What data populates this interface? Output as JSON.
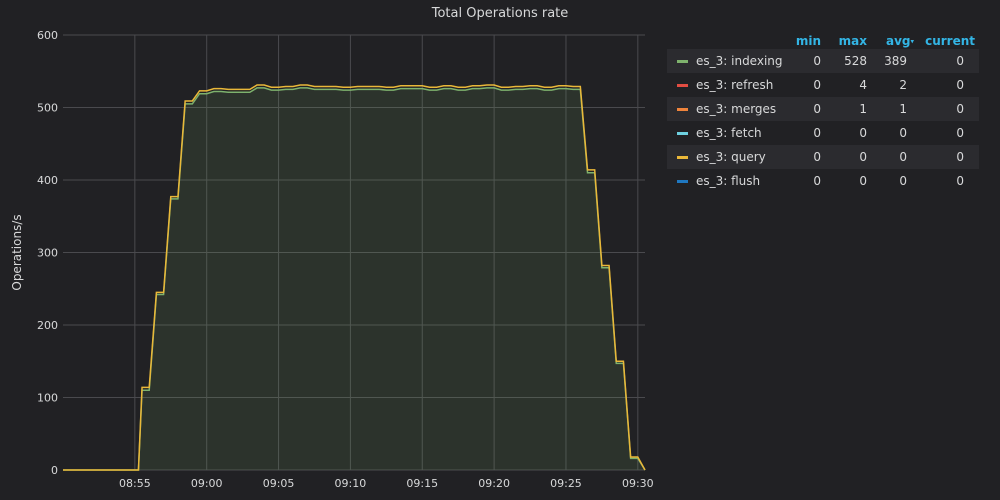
{
  "panel": {
    "title": "Total Operations rate"
  },
  "legend": {
    "headers": {
      "min": "min",
      "max": "max",
      "avg": "avg",
      "current": "current",
      "sort_indicator": "▾"
    },
    "rows": [
      {
        "name": "es_3: indexing",
        "color": "#7eb26d",
        "min": "0",
        "max": "528",
        "avg": "389",
        "current": "0"
      },
      {
        "name": "es_3: refresh",
        "color": "#e24d42",
        "min": "0",
        "max": "4",
        "avg": "2",
        "current": "0"
      },
      {
        "name": "es_3: merges",
        "color": "#ef843c",
        "min": "0",
        "max": "1",
        "avg": "1",
        "current": "0"
      },
      {
        "name": "es_3: fetch",
        "color": "#6ed0e0",
        "min": "0",
        "max": "0",
        "avg": "0",
        "current": "0"
      },
      {
        "name": "es_3: query",
        "color": "#eab839",
        "min": "0",
        "max": "0",
        "avg": "0",
        "current": "0"
      },
      {
        "name": "es_3: flush",
        "color": "#1f78c1",
        "min": "0",
        "max": "0",
        "avg": "0",
        "current": "0"
      }
    ]
  },
  "chart_data": {
    "type": "area",
    "title": "Total Operations rate",
    "xlabel": "",
    "ylabel": "Operations/s",
    "ylim": [
      0,
      600
    ],
    "xlim": [
      "08:50:00",
      "09:30:30"
    ],
    "y_ticks": [
      "0",
      "100",
      "200",
      "300",
      "400",
      "500",
      "600"
    ],
    "x_ticks": [
      "08:55",
      "09:00",
      "09:05",
      "09:10",
      "09:15",
      "09:20",
      "09:25",
      "09:30"
    ],
    "x_tick_values": [
      "08:55:00",
      "09:00:00",
      "09:05:00",
      "09:10:00",
      "09:15:00",
      "09:20:00",
      "09:25:00",
      "09:30:00"
    ],
    "grid": true,
    "legend_position": "right",
    "series": [
      {
        "name": "es_3: indexing",
        "color": "#7eb26d",
        "x": [
          "08:50:00",
          "08:55:15",
          "08:55:30",
          "08:56:00",
          "08:56:30",
          "08:57:00",
          "08:57:30",
          "08:58:00",
          "08:58:30",
          "08:59:00",
          "08:59:30",
          "09:00:00",
          "09:00:30",
          "09:01:00",
          "09:01:30",
          "09:02:00",
          "09:02:30",
          "09:03:00",
          "09:03:30",
          "09:04:00",
          "09:04:30",
          "09:05:00",
          "09:05:30",
          "09:06:00",
          "09:06:30",
          "09:07:00",
          "09:07:30",
          "09:08:00",
          "09:08:30",
          "09:09:00",
          "09:09:30",
          "09:10:00",
          "09:10:30",
          "09:11:00",
          "09:11:30",
          "09:12:00",
          "09:12:30",
          "09:13:00",
          "09:13:30",
          "09:14:00",
          "09:14:30",
          "09:15:00",
          "09:15:30",
          "09:16:00",
          "09:16:30",
          "09:17:00",
          "09:17:30",
          "09:18:00",
          "09:18:30",
          "09:19:00",
          "09:19:30",
          "09:20:00",
          "09:20:30",
          "09:21:00",
          "09:21:30",
          "09:22:00",
          "09:22:30",
          "09:23:00",
          "09:23:30",
          "09:24:00",
          "09:24:30",
          "09:25:00",
          "09:25:30",
          "09:26:00",
          "09:26:30",
          "09:27:00",
          "09:27:30",
          "09:28:00",
          "09:28:30",
          "09:29:00",
          "09:29:30",
          "09:30:00",
          "09:30:30"
        ],
        "y": [
          0,
          0,
          110,
          110,
          242,
          242,
          374,
          374,
          505,
          505,
          519,
          519,
          522,
          522,
          521,
          521,
          521,
          521,
          527,
          527,
          524,
          524,
          525,
          525,
          527,
          527,
          525,
          525,
          525,
          525,
          524,
          524,
          525,
          525,
          525,
          525,
          524,
          524,
          526,
          526,
          526,
          526,
          524,
          524,
          526,
          526,
          524,
          524,
          526,
          526,
          527,
          527,
          524,
          524,
          525,
          525,
          526,
          526,
          524,
          524,
          526,
          526,
          525,
          525,
          410,
          410,
          279,
          279,
          147,
          147,
          16,
          16,
          0
        ]
      },
      {
        "name": "es_3: query",
        "color": "#eab839",
        "x": [
          "08:50:00",
          "08:55:15",
          "08:55:30",
          "08:56:00",
          "08:56:30",
          "08:57:00",
          "08:57:30",
          "08:58:00",
          "08:58:30",
          "08:59:00",
          "08:59:30",
          "09:00:00",
          "09:00:30",
          "09:01:00",
          "09:01:30",
          "09:02:00",
          "09:02:30",
          "09:03:00",
          "09:03:30",
          "09:04:00",
          "09:04:30",
          "09:05:00",
          "09:05:30",
          "09:06:00",
          "09:06:30",
          "09:07:00",
          "09:07:30",
          "09:08:00",
          "09:08:30",
          "09:09:00",
          "09:09:30",
          "09:10:00",
          "09:10:30",
          "09:11:00",
          "09:11:30",
          "09:12:00",
          "09:12:30",
          "09:13:00",
          "09:13:30",
          "09:14:00",
          "09:14:30",
          "09:15:00",
          "09:15:30",
          "09:16:00",
          "09:16:30",
          "09:17:00",
          "09:17:30",
          "09:18:00",
          "09:18:30",
          "09:19:00",
          "09:19:30",
          "09:20:00",
          "09:20:30",
          "09:21:00",
          "09:21:30",
          "09:22:00",
          "09:22:30",
          "09:23:00",
          "09:23:30",
          "09:24:00",
          "09:24:30",
          "09:25:00",
          "09:25:30",
          "09:26:00",
          "09:26:30",
          "09:27:00",
          "09:27:30",
          "09:28:00",
          "09:28:30",
          "09:29:00",
          "09:29:30",
          "09:30:00",
          "09:30:30"
        ],
        "y": [
          0,
          0,
          114,
          114,
          245,
          245,
          377,
          377,
          509,
          509,
          523,
          523,
          526,
          526,
          525,
          525,
          525,
          525,
          531,
          531,
          528,
          528,
          529,
          529,
          531,
          531,
          529,
          529,
          529,
          529,
          528,
          528,
          529,
          529,
          529,
          529,
          528,
          528,
          530,
          530,
          530,
          530,
          528,
          528,
          530,
          530,
          528,
          528,
          530,
          530,
          531,
          531,
          528,
          528,
          529,
          529,
          530,
          530,
          528,
          528,
          530,
          530,
          529,
          529,
          414,
          414,
          282,
          282,
          150,
          150,
          18,
          18,
          0
        ]
      }
    ]
  }
}
